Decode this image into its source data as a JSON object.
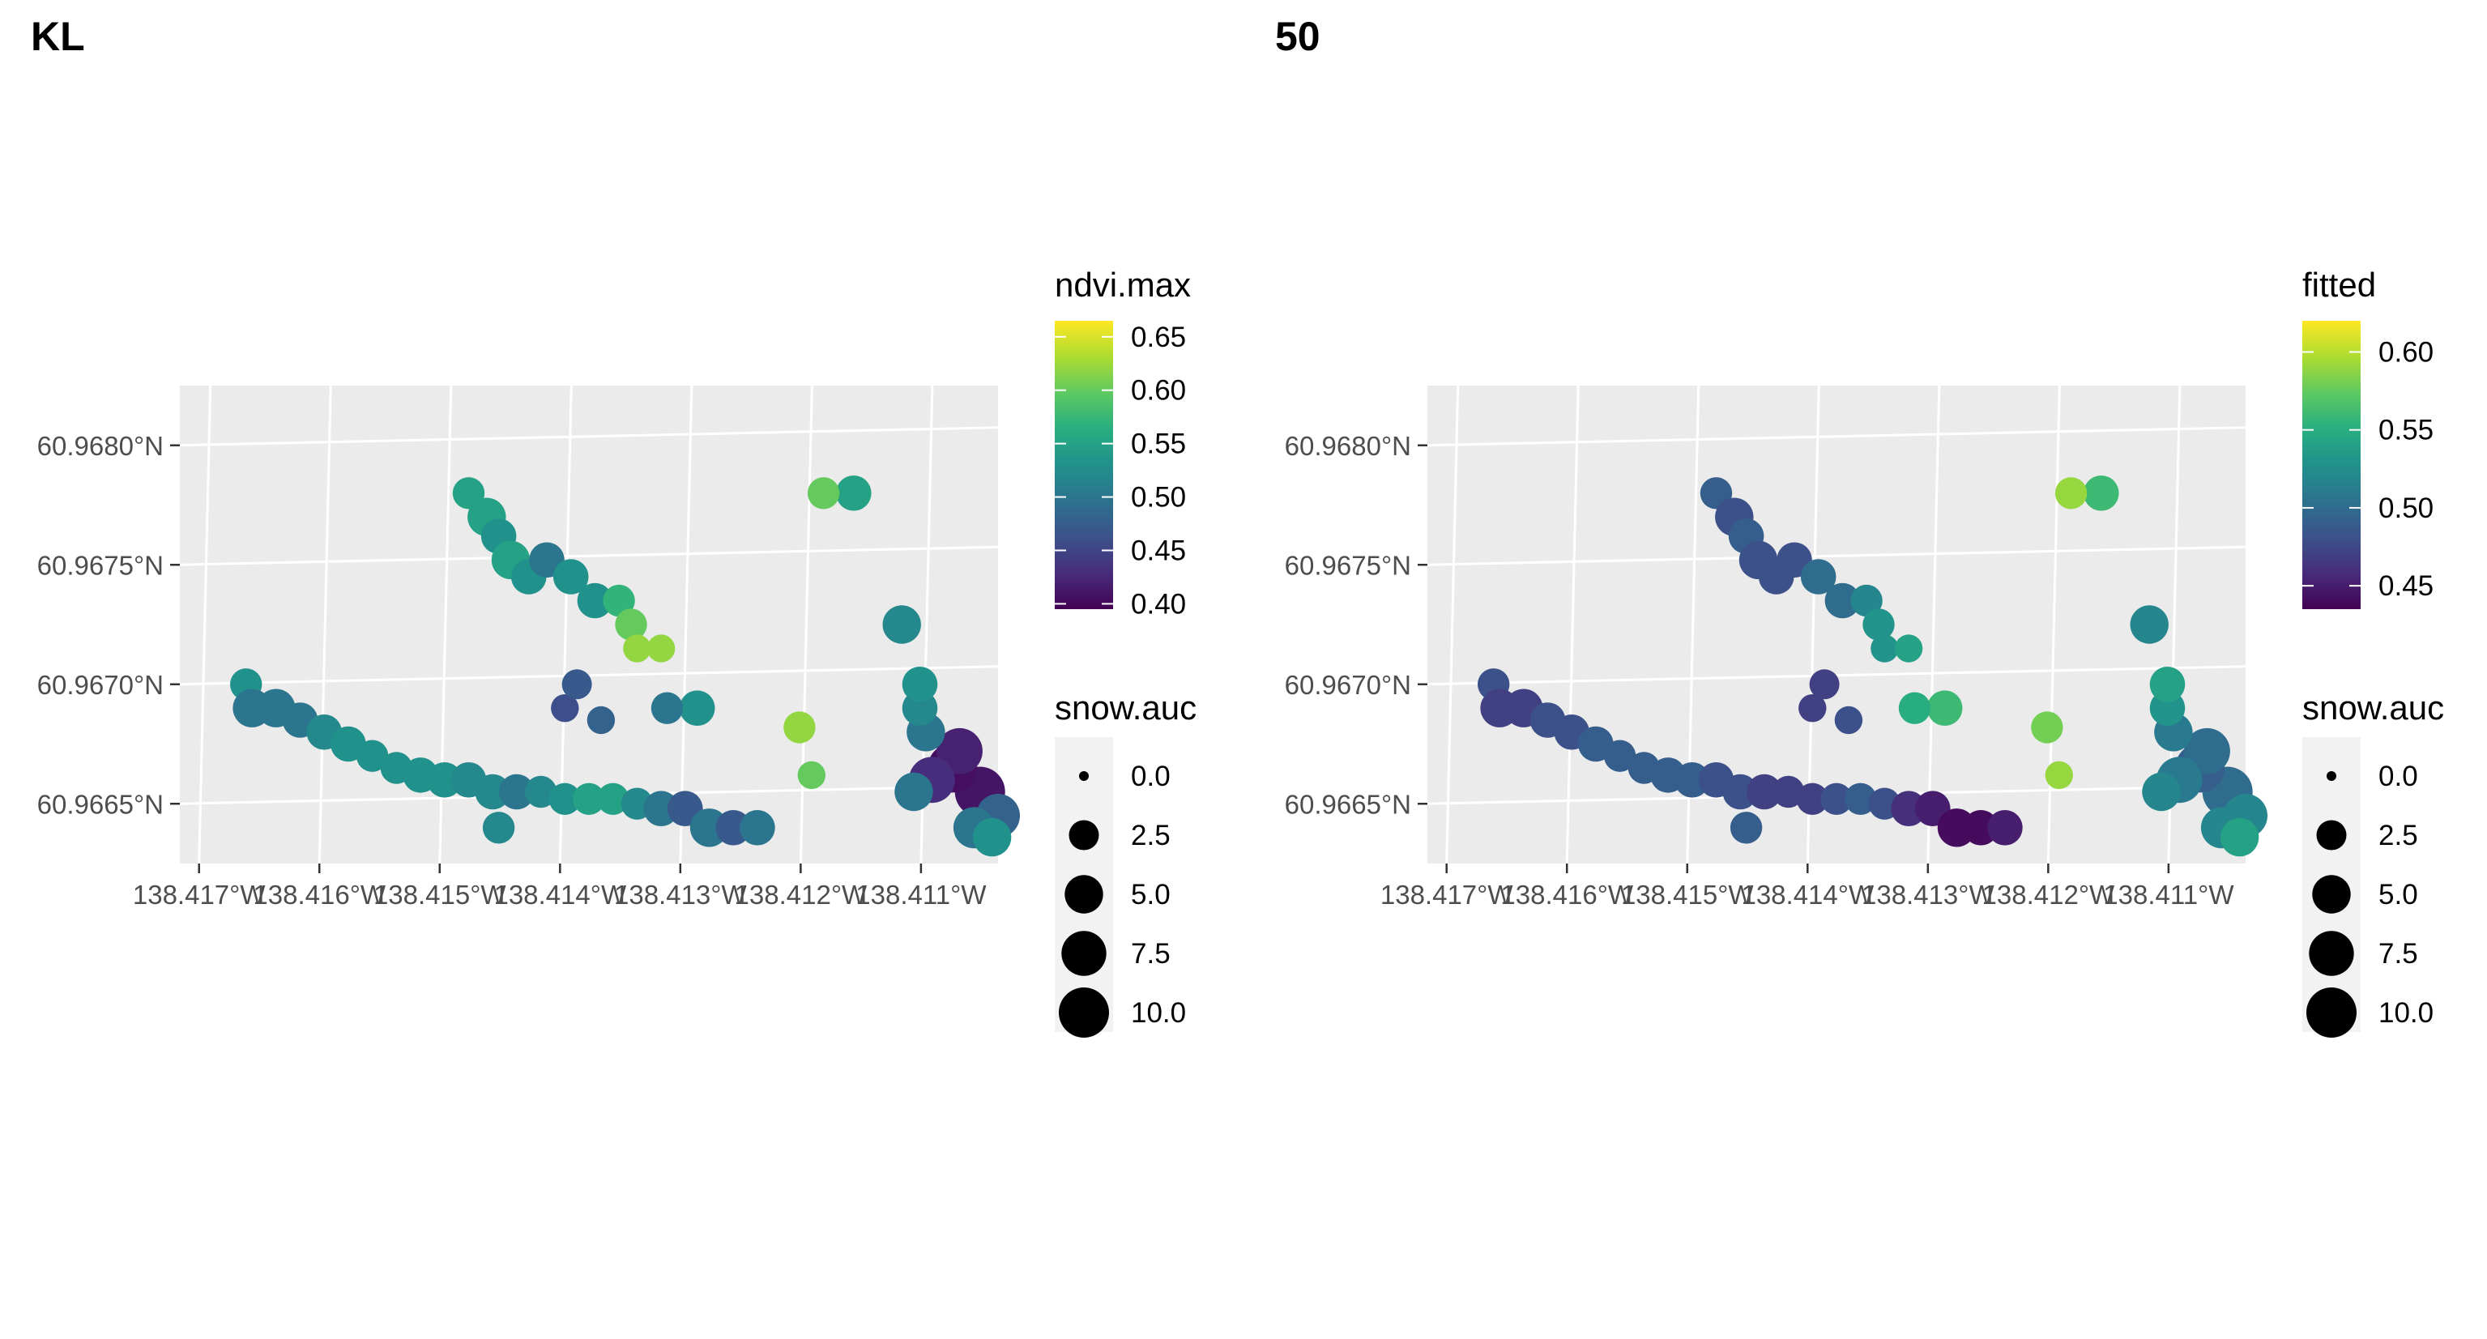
{
  "chart_data": [
    {
      "type": "scatter",
      "title": "KL",
      "color_variable": "ndvi.max",
      "color_ticks": [
        "0.65",
        "0.60",
        "0.55",
        "0.50",
        "0.45",
        "0.40"
      ],
      "color_range": [
        0.395,
        0.665
      ],
      "size_variable": "snow.auc",
      "size_ticks": [
        "0.0",
        "2.5",
        "5.0",
        "7.5",
        "10.0"
      ],
      "x_ticks": [
        "138.417°W",
        "138.416°W",
        "138.415°W",
        "138.414°W",
        "138.413°W",
        "138.412°W",
        "138.411°W"
      ],
      "y_ticks": [
        "60.9680°N",
        "60.9675°N",
        "60.9670°N",
        "60.9665°N"
      ],
      "xlim": [
        -138.4172,
        -138.4104
      ],
      "ylim": [
        60.96625,
        60.96825
      ],
      "grid": true,
      "legend_position": "right",
      "points": [
        {
          "x": -138.41055,
          "y": 60.96655,
          "c": 0.41,
          "s": 10.0
        },
        {
          "x": -138.41078,
          "y": 60.96665,
          "c": 0.405,
          "s": 9.5
        },
        {
          "x": -138.41072,
          "y": 60.96672,
          "c": 0.42,
          "s": 8.0
        },
        {
          "x": -138.41095,
          "y": 60.9666,
          "c": 0.43,
          "s": 8.0
        },
        {
          "x": -138.4104,
          "y": 60.96645,
          "c": 0.48,
          "s": 7.0
        },
        {
          "x": -138.4106,
          "y": 60.9664,
          "c": 0.5,
          "s": 6.0
        },
        {
          "x": -138.41045,
          "y": 60.96636,
          "c": 0.53,
          "s": 5.0
        },
        {
          "x": -138.4111,
          "y": 60.96655,
          "c": 0.5,
          "s": 5.0
        },
        {
          "x": -138.411,
          "y": 60.9668,
          "c": 0.5,
          "s": 5.0
        },
        {
          "x": -138.41105,
          "y": 60.9669,
          "c": 0.52,
          "s": 4.0
        },
        {
          "x": -138.41105,
          "y": 60.967,
          "c": 0.53,
          "s": 4.0
        },
        {
          "x": -138.4112,
          "y": 60.96725,
          "c": 0.52,
          "s": 5.0
        },
        {
          "x": -138.4116,
          "y": 60.9678,
          "c": 0.55,
          "s": 4.0
        },
        {
          "x": -138.41185,
          "y": 60.9678,
          "c": 0.6,
          "s": 3.0
        },
        {
          "x": -138.41205,
          "y": 60.96682,
          "c": 0.62,
          "s": 3.0
        },
        {
          "x": -138.41195,
          "y": 60.96662,
          "c": 0.6,
          "s": 2.0
        },
        {
          "x": -138.4129,
          "y": 60.9669,
          "c": 0.53,
          "s": 4.0
        },
        {
          "x": -138.41315,
          "y": 60.9669,
          "c": 0.5,
          "s": 3.0
        },
        {
          "x": -138.4148,
          "y": 60.9678,
          "c": 0.55,
          "s": 3.0
        },
        {
          "x": -138.41465,
          "y": 60.9677,
          "c": 0.55,
          "s": 5.0
        },
        {
          "x": -138.41455,
          "y": 60.96762,
          "c": 0.53,
          "s": 4.0
        },
        {
          "x": -138.41445,
          "y": 60.96752,
          "c": 0.55,
          "s": 5.0
        },
        {
          "x": -138.4143,
          "y": 60.96745,
          "c": 0.53,
          "s": 4.0
        },
        {
          "x": -138.41415,
          "y": 60.96752,
          "c": 0.5,
          "s": 4.0
        },
        {
          "x": -138.41395,
          "y": 60.96745,
          "c": 0.53,
          "s": 4.0
        },
        {
          "x": -138.41375,
          "y": 60.96735,
          "c": 0.53,
          "s": 4.0
        },
        {
          "x": -138.41355,
          "y": 60.96735,
          "c": 0.57,
          "s": 3.0
        },
        {
          "x": -138.41345,
          "y": 60.96725,
          "c": 0.6,
          "s": 3.0
        },
        {
          "x": -138.4134,
          "y": 60.96715,
          "c": 0.62,
          "s": 2.0
        },
        {
          "x": -138.4132,
          "y": 60.96715,
          "c": 0.62,
          "s": 2.0
        },
        {
          "x": -138.41665,
          "y": 60.967,
          "c": 0.53,
          "s": 3.0
        },
        {
          "x": -138.4166,
          "y": 60.9669,
          "c": 0.5,
          "s": 5.0
        },
        {
          "x": -138.4164,
          "y": 60.9669,
          "c": 0.5,
          "s": 5.0
        },
        {
          "x": -138.4162,
          "y": 60.96685,
          "c": 0.5,
          "s": 4.0
        },
        {
          "x": -138.416,
          "y": 60.9668,
          "c": 0.52,
          "s": 4.0
        },
        {
          "x": -138.4158,
          "y": 60.96675,
          "c": 0.53,
          "s": 4.0
        },
        {
          "x": -138.4156,
          "y": 60.9667,
          "c": 0.53,
          "s": 3.0
        },
        {
          "x": -138.4154,
          "y": 60.96665,
          "c": 0.53,
          "s": 3.0
        },
        {
          "x": -138.4152,
          "y": 60.96662,
          "c": 0.53,
          "s": 4.0
        },
        {
          "x": -138.415,
          "y": 60.9666,
          "c": 0.53,
          "s": 4.0
        },
        {
          "x": -138.4148,
          "y": 60.9666,
          "c": 0.52,
          "s": 4.0
        },
        {
          "x": -138.4146,
          "y": 60.96655,
          "c": 0.52,
          "s": 4.0
        },
        {
          "x": -138.4144,
          "y": 60.96655,
          "c": 0.5,
          "s": 4.0
        },
        {
          "x": -138.4142,
          "y": 60.96655,
          "c": 0.52,
          "s": 3.0
        },
        {
          "x": -138.414,
          "y": 60.96652,
          "c": 0.53,
          "s": 3.0
        },
        {
          "x": -138.4138,
          "y": 60.96652,
          "c": 0.55,
          "s": 3.0
        },
        {
          "x": -138.4136,
          "y": 60.96652,
          "c": 0.55,
          "s": 3.0
        },
        {
          "x": -138.4134,
          "y": 60.9665,
          "c": 0.52,
          "s": 3.0
        },
        {
          "x": -138.4132,
          "y": 60.96648,
          "c": 0.5,
          "s": 4.0
        },
        {
          "x": -138.413,
          "y": 60.96648,
          "c": 0.47,
          "s": 4.0
        },
        {
          "x": -138.4128,
          "y": 60.9664,
          "c": 0.5,
          "s": 5.0
        },
        {
          "x": -138.4126,
          "y": 60.9664,
          "c": 0.47,
          "s": 4.0
        },
        {
          "x": -138.4124,
          "y": 60.9664,
          "c": 0.5,
          "s": 4.0
        },
        {
          "x": -138.41455,
          "y": 60.9664,
          "c": 0.52,
          "s": 3.0
        },
        {
          "x": -138.414,
          "y": 60.9669,
          "c": 0.46,
          "s": 2.0
        },
        {
          "x": -138.4139,
          "y": 60.967,
          "c": 0.47,
          "s": 2.5
        },
        {
          "x": -138.4137,
          "y": 60.96685,
          "c": 0.48,
          "s": 2.0
        }
      ]
    },
    {
      "type": "scatter",
      "title": "50",
      "color_variable": "fitted",
      "color_ticks": [
        "0.60",
        "0.55",
        "0.50",
        "0.45"
      ],
      "color_range": [
        0.435,
        0.62
      ],
      "size_variable": "snow.auc",
      "size_ticks": [
        "0.0",
        "2.5",
        "5.0",
        "7.5",
        "10.0"
      ],
      "x_ticks": [
        "138.417°W",
        "138.416°W",
        "138.415°W",
        "138.414°W",
        "138.413°W",
        "138.412°W",
        "138.411°W"
      ],
      "y_ticks": [
        "60.9680°N",
        "60.9675°N",
        "60.9670°N",
        "60.9665°N"
      ],
      "xlim": [
        -138.4172,
        -138.4104
      ],
      "ylim": [
        60.96625,
        60.96825
      ],
      "grid": true,
      "legend_position": "right",
      "points": [
        {
          "x": -138.41055,
          "y": 60.96655,
          "c": 0.5,
          "s": 10.0
        },
        {
          "x": -138.41078,
          "y": 60.96665,
          "c": 0.49,
          "s": 9.5
        },
        {
          "x": -138.41072,
          "y": 60.96672,
          "c": 0.5,
          "s": 8.0
        },
        {
          "x": -138.41095,
          "y": 60.9666,
          "c": 0.51,
          "s": 8.0
        },
        {
          "x": -138.4104,
          "y": 60.96645,
          "c": 0.52,
          "s": 7.0
        },
        {
          "x": -138.4106,
          "y": 60.9664,
          "c": 0.52,
          "s": 6.0
        },
        {
          "x": -138.41045,
          "y": 60.96636,
          "c": 0.54,
          "s": 5.0
        },
        {
          "x": -138.4111,
          "y": 60.96655,
          "c": 0.52,
          "s": 5.0
        },
        {
          "x": -138.411,
          "y": 60.9668,
          "c": 0.51,
          "s": 5.0
        },
        {
          "x": -138.41105,
          "y": 60.9669,
          "c": 0.53,
          "s": 4.0
        },
        {
          "x": -138.41105,
          "y": 60.967,
          "c": 0.54,
          "s": 4.0
        },
        {
          "x": -138.4112,
          "y": 60.96725,
          "c": 0.52,
          "s": 5.0
        },
        {
          "x": -138.4116,
          "y": 60.9678,
          "c": 0.56,
          "s": 4.0
        },
        {
          "x": -138.41185,
          "y": 60.9678,
          "c": 0.59,
          "s": 3.0
        },
        {
          "x": -138.41205,
          "y": 60.96682,
          "c": 0.58,
          "s": 3.0
        },
        {
          "x": -138.41195,
          "y": 60.96662,
          "c": 0.59,
          "s": 2.0
        },
        {
          "x": -138.4129,
          "y": 60.9669,
          "c": 0.56,
          "s": 4.0
        },
        {
          "x": -138.41315,
          "y": 60.9669,
          "c": 0.55,
          "s": 3.0
        },
        {
          "x": -138.4148,
          "y": 60.9678,
          "c": 0.49,
          "s": 3.0
        },
        {
          "x": -138.41465,
          "y": 60.9677,
          "c": 0.48,
          "s": 5.0
        },
        {
          "x": -138.41455,
          "y": 60.96762,
          "c": 0.49,
          "s": 4.0
        },
        {
          "x": -138.41445,
          "y": 60.96752,
          "c": 0.48,
          "s": 5.0
        },
        {
          "x": -138.4143,
          "y": 60.96745,
          "c": 0.48,
          "s": 4.0
        },
        {
          "x": -138.41415,
          "y": 60.96752,
          "c": 0.48,
          "s": 4.0
        },
        {
          "x": -138.41395,
          "y": 60.96745,
          "c": 0.5,
          "s": 4.0
        },
        {
          "x": -138.41375,
          "y": 60.96735,
          "c": 0.5,
          "s": 4.0
        },
        {
          "x": -138.41355,
          "y": 60.96735,
          "c": 0.52,
          "s": 3.0
        },
        {
          "x": -138.41345,
          "y": 60.96725,
          "c": 0.53,
          "s": 3.0
        },
        {
          "x": -138.4134,
          "y": 60.96715,
          "c": 0.53,
          "s": 2.0
        },
        {
          "x": -138.4132,
          "y": 60.96715,
          "c": 0.54,
          "s": 2.0
        },
        {
          "x": -138.41665,
          "y": 60.967,
          "c": 0.48,
          "s": 3.0
        },
        {
          "x": -138.4166,
          "y": 60.9669,
          "c": 0.47,
          "s": 5.0
        },
        {
          "x": -138.4164,
          "y": 60.9669,
          "c": 0.47,
          "s": 5.0
        },
        {
          "x": -138.4162,
          "y": 60.96685,
          "c": 0.48,
          "s": 4.0
        },
        {
          "x": -138.416,
          "y": 60.9668,
          "c": 0.48,
          "s": 4.0
        },
        {
          "x": -138.4158,
          "y": 60.96675,
          "c": 0.49,
          "s": 4.0
        },
        {
          "x": -138.4156,
          "y": 60.9667,
          "c": 0.49,
          "s": 3.0
        },
        {
          "x": -138.4154,
          "y": 60.96665,
          "c": 0.49,
          "s": 3.0
        },
        {
          "x": -138.4152,
          "y": 60.96662,
          "c": 0.49,
          "s": 4.0
        },
        {
          "x": -138.415,
          "y": 60.9666,
          "c": 0.49,
          "s": 4.0
        },
        {
          "x": -138.4148,
          "y": 60.9666,
          "c": 0.48,
          "s": 4.0
        },
        {
          "x": -138.4146,
          "y": 60.96655,
          "c": 0.48,
          "s": 4.0
        },
        {
          "x": -138.4144,
          "y": 60.96655,
          "c": 0.47,
          "s": 4.0
        },
        {
          "x": -138.4142,
          "y": 60.96655,
          "c": 0.47,
          "s": 3.0
        },
        {
          "x": -138.414,
          "y": 60.96652,
          "c": 0.47,
          "s": 3.0
        },
        {
          "x": -138.4138,
          "y": 60.96652,
          "c": 0.48,
          "s": 3.0
        },
        {
          "x": -138.4136,
          "y": 60.96652,
          "c": 0.49,
          "s": 3.0
        },
        {
          "x": -138.4134,
          "y": 60.9665,
          "c": 0.48,
          "s": 3.0
        },
        {
          "x": -138.4132,
          "y": 60.96648,
          "c": 0.46,
          "s": 4.0
        },
        {
          "x": -138.413,
          "y": 60.96648,
          "c": 0.45,
          "s": 4.0
        },
        {
          "x": -138.4128,
          "y": 60.9664,
          "c": 0.44,
          "s": 5.0
        },
        {
          "x": -138.4126,
          "y": 60.9664,
          "c": 0.44,
          "s": 4.0
        },
        {
          "x": -138.4124,
          "y": 60.9664,
          "c": 0.45,
          "s": 4.0
        },
        {
          "x": -138.41455,
          "y": 60.9664,
          "c": 0.49,
          "s": 3.0
        },
        {
          "x": -138.414,
          "y": 60.9669,
          "c": 0.47,
          "s": 2.0
        },
        {
          "x": -138.4139,
          "y": 60.967,
          "c": 0.47,
          "s": 2.5
        },
        {
          "x": -138.4137,
          "y": 60.96685,
          "c": 0.48,
          "s": 2.0
        }
      ]
    }
  ]
}
